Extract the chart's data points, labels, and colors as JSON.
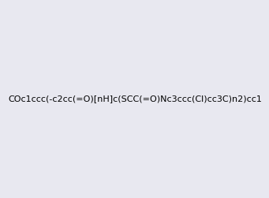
{
  "smiles": "COc1ccc(-c2cc(=O)[nH]c(SCC(=O)Nc3ccc(Cl)cc3C)n2)cc1",
  "image_size": 300,
  "background_color": "#e8e8f0",
  "title": ""
}
